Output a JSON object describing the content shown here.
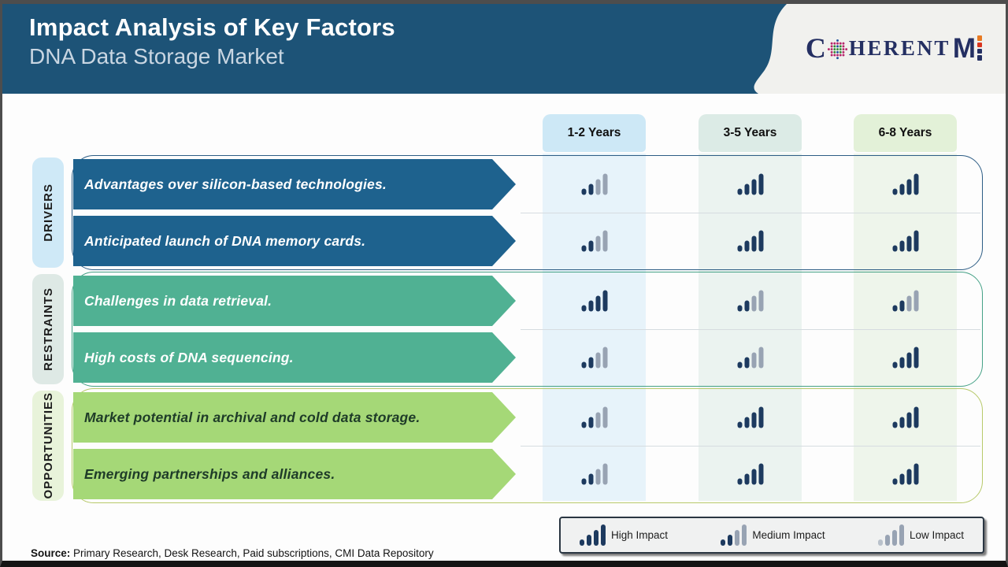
{
  "header": {
    "title": "Impact Analysis of Key Factors",
    "subtitle": "DNA Data Storage Market",
    "logo": {
      "part_c": "C",
      "part_herent": "HERENT",
      "part_m": "M"
    }
  },
  "columns": [
    {
      "label": "1-2 Years",
      "header_color": "#cde8f6",
      "band_color": "#e7f3fa"
    },
    {
      "label": "3-5 Years",
      "header_color": "#dcebe6",
      "band_color": "#ebf3f0"
    },
    {
      "label": "6-8 Years",
      "header_color": "#e3f1d8",
      "band_color": "#eef5eb"
    }
  ],
  "groups": [
    {
      "label": "DRIVERS",
      "chip_color": "#cfe9f7",
      "outline_color": "#2d5d85",
      "arrow_color": "#1e628e",
      "arrow_text_color": "#ffffff",
      "rows": [
        {
          "label": "Advantages over silicon-based technologies.",
          "impacts": [
            "medium",
            "high",
            "high"
          ]
        },
        {
          "label": "Anticipated launch of DNA memory cards.",
          "impacts": [
            "medium",
            "high",
            "high"
          ]
        }
      ]
    },
    {
      "label": "RESTRAINTS",
      "chip_color": "#dee9e5",
      "outline_color": "#45a186",
      "arrow_color": "#50b193",
      "arrow_text_color": "#ffffff",
      "rows": [
        {
          "label": "Challenges in data retrieval.",
          "impacts": [
            "high",
            "medium",
            "medium"
          ]
        },
        {
          "label": "High costs of DNA sequencing.",
          "impacts": [
            "medium",
            "medium",
            "high"
          ]
        }
      ]
    },
    {
      "label": "OPPORTUNITIES",
      "chip_color": "#e8f3da",
      "outline_color": "#b7c96a",
      "arrow_color": "#a5d877",
      "arrow_text_color": "#1e3b28",
      "rows": [
        {
          "label": "Market potential in archival and cold data storage.",
          "impacts": [
            "medium",
            "high",
            "high"
          ]
        },
        {
          "label": "Emerging partnerships and alliances.",
          "impacts": [
            "medium",
            "high",
            "high"
          ]
        }
      ]
    }
  ],
  "legend": {
    "items": [
      {
        "level": "high",
        "label": "High Impact"
      },
      {
        "level": "medium",
        "label": "Medium Impact"
      },
      {
        "level": "low",
        "label": "Low Impact"
      }
    ]
  },
  "source": {
    "prefix": "Source:",
    "text": " Primary Research, Desk Research, Paid subscriptions, CMI Data Repository"
  },
  "colors": {
    "header_bg": "#1d5377",
    "bar_dark": "#1d3a5f",
    "bar_gray": "#98a3b3",
    "bar_gray_light": "#b9c1cb",
    "logo_navy": "#242f62",
    "logo_orange": "#e87a22",
    "swoosh_bg": "#f1f1ee"
  }
}
